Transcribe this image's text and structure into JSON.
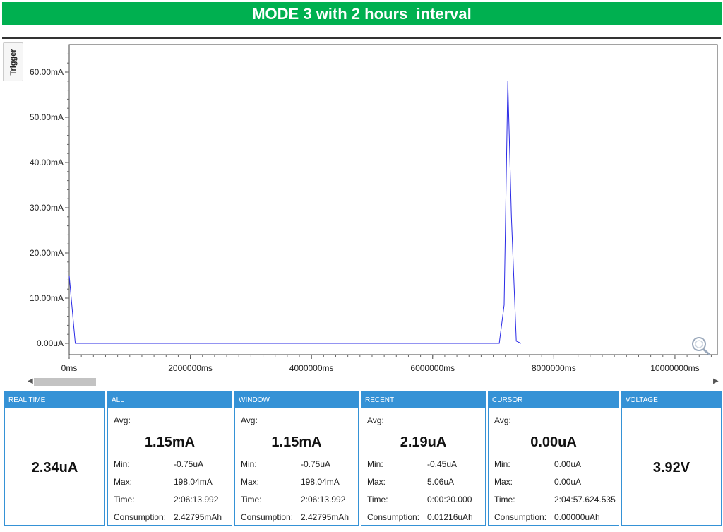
{
  "banner": {
    "title": "MODE 3 with 2 hours  interval"
  },
  "trigger": {
    "label": "Trigger"
  },
  "chart_data": {
    "type": "line",
    "y_ticks": [
      "60.00mA",
      "50.00mA",
      "40.00mA",
      "30.00mA",
      "20.00mA",
      "10.00mA",
      "0.00uA"
    ],
    "x_ticks": [
      "0ms",
      "2000000ms",
      "4000000ms",
      "6000000ms",
      "8000000ms",
      "10000000ms"
    ],
    "xlim": [
      0,
      10700000
    ],
    "ylim": [
      -1,
      66
    ],
    "series": [
      {
        "x": [
          0,
          100000,
          7100000,
          7180000,
          7240000,
          7300000,
          7380000,
          7460000
        ],
        "y": [
          15,
          0,
          0,
          8.5,
          58,
          28,
          0.5,
          0
        ]
      }
    ],
    "line_color": "#2a2ae6"
  },
  "cards": [
    {
      "title": "REAL TIME",
      "big": "2.34uA"
    },
    {
      "title": "ALL",
      "avg_label": "Avg:",
      "big": "1.15mA",
      "rows": [
        [
          "Min:",
          "-0.75uA"
        ],
        [
          "Max:",
          "198.04mA"
        ],
        [
          "Time:",
          "2:06:13.992"
        ],
        [
          "Consumption:",
          "2.42795mAh"
        ]
      ]
    },
    {
      "title": "WINDOW",
      "avg_label": "Avg:",
      "big": "1.15mA",
      "rows": [
        [
          "Min:",
          "-0.75uA"
        ],
        [
          "Max:",
          "198.04mA"
        ],
        [
          "Time:",
          "2:06:13.992"
        ],
        [
          "Consumption:",
          "2.42795mAh"
        ]
      ]
    },
    {
      "title": "RECENT",
      "avg_label": "Avg:",
      "big": "2.19uA",
      "rows": [
        [
          "Min:",
          "-0.45uA"
        ],
        [
          "Max:",
          "5.06uA"
        ],
        [
          "Time:",
          "0:00:20.000"
        ],
        [
          "Consumption:",
          "0.01216uAh"
        ]
      ]
    },
    {
      "title": "CURSOR",
      "avg_label": "Avg:",
      "big": "0.00uA",
      "rows": [
        [
          "Min:",
          "0.00uA"
        ],
        [
          "Max:",
          "0.00uA"
        ],
        [
          "Time:",
          "2:04:57.624.535"
        ],
        [
          "Consumption:",
          "0.00000uAh"
        ]
      ]
    },
    {
      "title": "VOLTAGE",
      "big": "3.92V"
    }
  ]
}
